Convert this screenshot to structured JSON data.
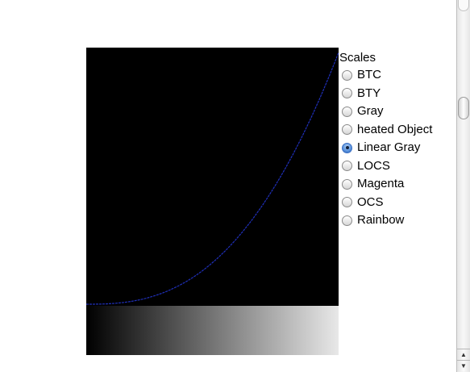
{
  "scales": {
    "title": "Scales",
    "selected": "Linear Gray",
    "options": [
      {
        "label": "BTC",
        "checked": false
      },
      {
        "label": "BTY",
        "checked": false
      },
      {
        "label": "Gray",
        "checked": false
      },
      {
        "label": "heated Object",
        "checked": false
      },
      {
        "label": "Linear Gray",
        "checked": true
      },
      {
        "label": "LOCS",
        "checked": false
      },
      {
        "label": "Magenta",
        "checked": false
      },
      {
        "label": "OCS",
        "checked": false
      },
      {
        "label": "Rainbow",
        "checked": false
      }
    ]
  },
  "plot": {
    "background": "#000000",
    "curve_color": "#1f2fb8",
    "curve_exponent": 2.6,
    "gradient_start": "#000000",
    "gradient_end": "#e8e8e8"
  },
  "scrollbar": {
    "up_arrow_icon": "▲",
    "down_arrow_icon": "▼"
  }
}
